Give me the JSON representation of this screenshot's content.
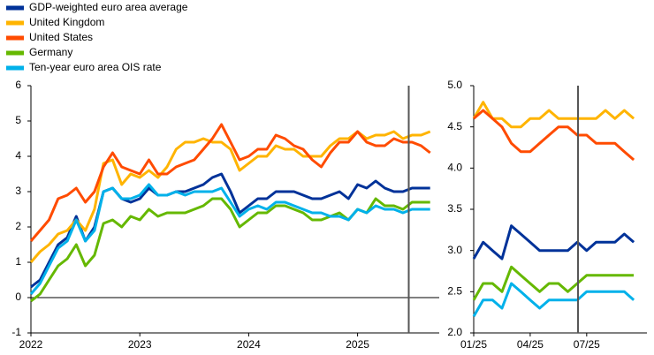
{
  "chart_data": [
    {
      "type": "line",
      "x": [
        2022,
        2022.0833,
        2022.1667,
        2022.25,
        2022.3333,
        2022.4167,
        2022.5,
        2022.5833,
        2022.6667,
        2022.75,
        2022.8333,
        2022.9167,
        2023,
        2023.0833,
        2023.1667,
        2023.25,
        2023.3333,
        2023.4167,
        2023.5,
        2023.5833,
        2023.6667,
        2023.75,
        2023.8333,
        2023.9167,
        2024,
        2024.0833,
        2024.1667,
        2024.25,
        2024.3333,
        2024.4167,
        2024.5,
        2024.5833,
        2024.6667,
        2024.75,
        2024.8333,
        2024.9167,
        2025,
        2025.0833,
        2025.1667,
        2025.25,
        2025.3333,
        2025.4167,
        2025.5,
        2025.5833,
        2025.6667
      ],
      "series": [
        {
          "name": "GDP-weighted euro area average",
          "color": "#003299",
          "values": [
            0.3,
            0.5,
            1.0,
            1.5,
            1.7,
            2.3,
            1.6,
            2.0,
            3.0,
            3.1,
            2.8,
            2.7,
            2.8,
            3.1,
            2.9,
            2.9,
            3.0,
            3.0,
            3.1,
            3.2,
            3.4,
            3.5,
            3.0,
            2.4,
            2.6,
            2.8,
            2.8,
            3.0,
            3.0,
            3.0,
            2.9,
            2.8,
            2.8,
            2.9,
            3.0,
            2.8,
            3.2,
            3.1,
            3.3,
            3.1,
            3.0,
            3.0,
            3.1,
            3.1,
            3.1
          ]
        },
        {
          "name": "United Kingdom",
          "color": "#ffb400",
          "values": [
            1.0,
            1.3,
            1.5,
            1.8,
            1.9,
            2.2,
            1.9,
            2.5,
            3.8,
            3.9,
            3.2,
            3.5,
            3.4,
            3.6,
            3.4,
            3.7,
            4.2,
            4.4,
            4.4,
            4.5,
            4.4,
            4.4,
            4.2,
            3.6,
            3.8,
            4.0,
            4.0,
            4.3,
            4.2,
            4.2,
            4.0,
            4.0,
            4.0,
            4.3,
            4.5,
            4.5,
            4.7,
            4.5,
            4.6,
            4.6,
            4.7,
            4.5,
            4.6,
            4.6,
            4.7
          ]
        },
        {
          "name": "United States",
          "color": "#ff4b00",
          "values": [
            1.6,
            1.9,
            2.2,
            2.8,
            2.9,
            3.1,
            2.7,
            3.0,
            3.7,
            4.1,
            3.7,
            3.6,
            3.5,
            3.9,
            3.5,
            3.5,
            3.7,
            3.8,
            3.9,
            4.2,
            4.5,
            4.9,
            4.4,
            3.9,
            4.0,
            4.2,
            4.2,
            4.6,
            4.5,
            4.3,
            4.2,
            3.9,
            3.7,
            4.1,
            4.4,
            4.4,
            4.7,
            4.4,
            4.3,
            4.3,
            4.5,
            4.4,
            4.4,
            4.3,
            4.1
          ]
        },
        {
          "name": "Germany",
          "color": "#65b800",
          "values": [
            -0.1,
            0.1,
            0.5,
            0.9,
            1.1,
            1.5,
            0.9,
            1.2,
            2.1,
            2.2,
            2.0,
            2.3,
            2.2,
            2.5,
            2.3,
            2.4,
            2.4,
            2.4,
            2.5,
            2.6,
            2.8,
            2.8,
            2.5,
            2.0,
            2.2,
            2.4,
            2.4,
            2.6,
            2.6,
            2.5,
            2.4,
            2.2,
            2.2,
            2.3,
            2.4,
            2.2,
            2.5,
            2.4,
            2.8,
            2.6,
            2.6,
            2.5,
            2.7,
            2.7,
            2.7
          ]
        },
        {
          "name": "Ten-year euro area OIS rate",
          "color": "#00b1ea",
          "values": [
            0.1,
            0.4,
            0.9,
            1.4,
            1.6,
            2.2,
            1.6,
            1.9,
            3.0,
            3.1,
            2.8,
            2.8,
            2.9,
            3.2,
            2.9,
            2.9,
            3.0,
            2.9,
            3.0,
            3.0,
            3.0,
            3.1,
            2.7,
            2.3,
            2.5,
            2.6,
            2.5,
            2.7,
            2.7,
            2.6,
            2.5,
            2.4,
            2.4,
            2.3,
            2.3,
            2.2,
            2.5,
            2.4,
            2.6,
            2.5,
            2.5,
            2.4,
            2.5,
            2.5,
            2.5
          ]
        }
      ],
      "xlim": [
        2022,
        2025.75
      ],
      "xticks": [
        2022,
        2023,
        2024,
        2025
      ],
      "ylim": [
        -1,
        6
      ],
      "yticks": [
        -1,
        0,
        1,
        2,
        3,
        4,
        5,
        6
      ],
      "vline": 2025.47
    },
    {
      "type": "line",
      "x": [
        1,
        1.5,
        2,
        2.5,
        3,
        3.5,
        4,
        4.5,
        5,
        5.5,
        6,
        6.5,
        7,
        7.5,
        8,
        8.5,
        9,
        9.5
      ],
      "series": [
        {
          "color": "#003299",
          "values": [
            2.9,
            3.1,
            3.0,
            2.9,
            3.3,
            3.2,
            3.1,
            3.0,
            3.0,
            3.0,
            3.0,
            3.1,
            3.0,
            3.1,
            3.1,
            3.1,
            3.2,
            3.1
          ]
        },
        {
          "color": "#ffb400",
          "values": [
            4.6,
            4.8,
            4.6,
            4.6,
            4.5,
            4.5,
            4.6,
            4.6,
            4.7,
            4.6,
            4.6,
            4.6,
            4.6,
            4.6,
            4.7,
            4.6,
            4.7,
            4.6
          ]
        },
        {
          "color": "#ff4b00",
          "values": [
            4.6,
            4.7,
            4.6,
            4.5,
            4.3,
            4.2,
            4.2,
            4.3,
            4.4,
            4.5,
            4.5,
            4.4,
            4.4,
            4.3,
            4.3,
            4.3,
            4.2,
            4.1
          ]
        },
        {
          "color": "#65b800",
          "values": [
            2.4,
            2.6,
            2.6,
            2.5,
            2.8,
            2.7,
            2.6,
            2.5,
            2.6,
            2.6,
            2.5,
            2.6,
            2.7,
            2.7,
            2.7,
            2.7,
            2.7,
            2.7
          ]
        },
        {
          "color": "#00b1ea",
          "values": [
            2.2,
            2.4,
            2.4,
            2.3,
            2.6,
            2.5,
            2.4,
            2.3,
            2.4,
            2.4,
            2.4,
            2.4,
            2.5,
            2.5,
            2.5,
            2.5,
            2.5,
            2.4
          ]
        }
      ],
      "xlim": [
        1,
        10.2
      ],
      "xticks": [
        {
          "value": 1,
          "label": "01/25"
        },
        {
          "value": 4,
          "label": "04/25"
        },
        {
          "value": 7,
          "label": "07/25"
        }
      ],
      "ylim": [
        2,
        5
      ],
      "yticks": [
        {
          "value": 2,
          "label": "2.0"
        },
        {
          "value": 2.5,
          "label": "2.5"
        },
        {
          "value": 3,
          "label": "3.0"
        },
        {
          "value": 3.5,
          "label": "3.5"
        },
        {
          "value": 4,
          "label": "4.0"
        },
        {
          "value": 4.5,
          "label": "4.5"
        },
        {
          "value": 5,
          "label": "5.0"
        }
      ],
      "vline": 6.54
    }
  ]
}
